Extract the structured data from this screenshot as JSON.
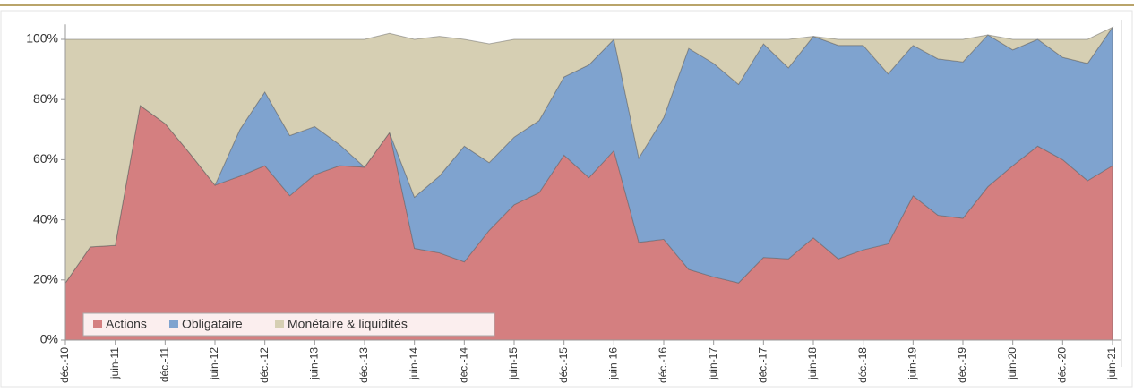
{
  "chart_data": {
    "type": "stacked_area",
    "categories": [
      "déc.-10",
      null,
      "juin-11",
      null,
      "déc.-11",
      null,
      "juin-12",
      null,
      "déc.-12",
      null,
      "juin-13",
      null,
      "déc.-13",
      null,
      "juin-14",
      null,
      "déc.-14",
      null,
      "juin-15",
      null,
      "déc.-15",
      null,
      "juin-16",
      null,
      "déc.-16",
      null,
      "juin-17",
      null,
      "déc.-17",
      null,
      "juin-18",
      null,
      "déc.-18",
      null,
      "juin-19",
      null,
      "déc.-19",
      null,
      "juin-20",
      null,
      "déc.-20",
      null,
      "juin-21"
    ],
    "series": [
      {
        "name": "Actions",
        "color": "#d47f80",
        "values": [
          19,
          31,
          31.5,
          78,
          72,
          62,
          51.5,
          54.5,
          58,
          48,
          55,
          58,
          57.5,
          69,
          30.5,
          29,
          26,
          36.5,
          45,
          49,
          61.5,
          54,
          63,
          32.5,
          33.5,
          23.5,
          21,
          19,
          27.5,
          27,
          34,
          27,
          30,
          32,
          48,
          41.5,
          40.5,
          51,
          58,
          64.5,
          60,
          53,
          58
        ]
      },
      {
        "name": "Obligataire",
        "color": "#7fa3cf",
        "values": [
          0,
          0,
          0,
          0,
          0,
          0,
          0,
          15.5,
          24.5,
          20,
          16,
          7,
          0,
          0,
          17,
          25.5,
          38.5,
          22.5,
          22.5,
          24,
          26,
          37.5,
          37,
          28,
          40.5,
          73.5,
          71,
          66,
          71,
          63.5,
          67,
          71,
          68,
          56.5,
          50,
          52,
          52,
          50.5,
          38.5,
          35.5,
          34,
          39,
          46
        ]
      },
      {
        "name": "Monétaire & liquidités",
        "color": "#d6cfb3",
        "values": [
          81,
          69,
          68.5,
          22,
          28,
          38,
          48.5,
          30,
          17.5,
          32,
          29,
          35,
          42.5,
          33,
          52.5,
          46.5,
          35.5,
          39.5,
          32.5,
          27,
          12.5,
          8.5,
          0,
          39.5,
          26,
          3,
          8,
          15,
          1.5,
          9.5,
          0,
          2,
          2,
          11.5,
          2,
          6.5,
          7.5,
          0,
          3.5,
          0,
          6,
          8,
          0
        ]
      }
    ],
    "ylim": [
      0,
      105
    ],
    "yticks": [
      {
        "value": 0,
        "label": "0%"
      },
      {
        "value": 20,
        "label": "20%"
      },
      {
        "value": 40,
        "label": "40%"
      },
      {
        "value": 60,
        "label": "60%"
      },
      {
        "value": 80,
        "label": "80%"
      },
      {
        "value": 100,
        "label": "100%"
      }
    ],
    "grid": false,
    "legend": "lower left"
  }
}
